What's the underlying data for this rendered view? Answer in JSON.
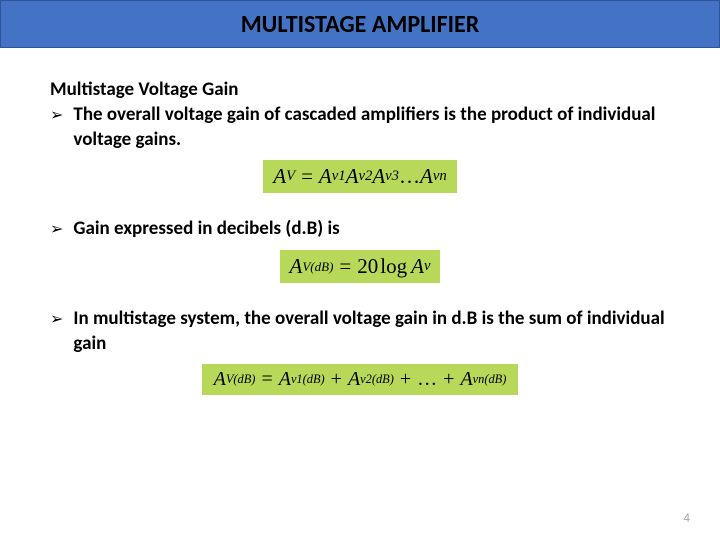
{
  "title": "MULTISTAGE AMPLIFIER",
  "subtitle": "Multistage Voltage Gain",
  "bullets": {
    "b1": "The overall voltage gain of cascaded amplifiers is the product of individual voltage gains.",
    "b2": "Gain expressed in decibels (d.B) is",
    "b3": "In multistage system, the overall voltage gain in d.B is the sum of individual gain"
  },
  "formulas": {
    "f1": {
      "lhs_base": "A",
      "lhs_sub": "V",
      "rhs_parts": [
        {
          "base": "A",
          "sub": "v1"
        },
        {
          "base": "A",
          "sub": "v2"
        },
        {
          "base": "A",
          "sub": "v3"
        }
      ],
      "ellipsis": "…",
      "rhs_last": {
        "base": "A",
        "sub": "vn"
      }
    },
    "f2": {
      "lhs_base": "A",
      "lhs_sub": "V(dB)",
      "coeff": "20",
      "func": "log",
      "arg_base": "A",
      "arg_sub": "v"
    },
    "f3": {
      "lhs_base": "A",
      "lhs_sub": "V(dB)",
      "terms": [
        {
          "base": "A",
          "sub": "v1(dB)"
        },
        {
          "base": "A",
          "sub": "v2(dB)"
        }
      ],
      "ellipsis": "…",
      "last": {
        "base": "A",
        "sub": "vn(dB)"
      },
      "plus": "+"
    }
  },
  "pageNumber": "4",
  "colors": {
    "titlebar_bg": "#4472c4",
    "titlebar_border": "#2f5597",
    "formula_bg": "#b8d85a",
    "text": "#000000",
    "pagenum": "#a6a6a6"
  }
}
